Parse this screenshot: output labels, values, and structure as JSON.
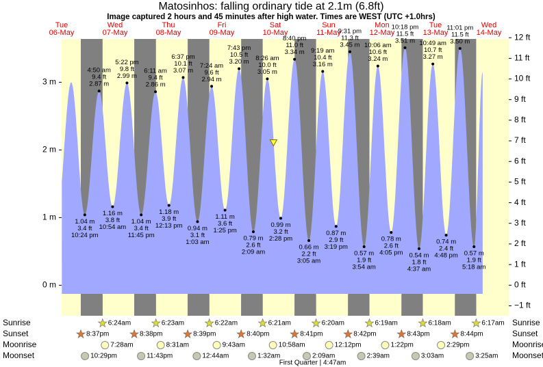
{
  "chart_data": {
    "type": "tide",
    "title": "Matosinhos: falling  ordinary tide at 2.1m (6.8ft)",
    "subtitle": "Image captured 2 hours and 45 minutes after high water. Times are WEST (UTC +1.0hrs)",
    "ylim": [
      -0.38,
      3.64
    ],
    "yticks": [
      {
        "value": 0,
        "label": "0 m"
      },
      {
        "value": 1,
        "label": "1 m"
      },
      {
        "value": 2,
        "label": "2 m"
      },
      {
        "value": 3,
        "label": "3 m"
      }
    ],
    "y2lim": [
      -1.25,
      11.94
    ],
    "y2ticks": [
      {
        "value": -1,
        "label": "−1 ft"
      },
      {
        "value": 0,
        "label": "0 ft"
      },
      {
        "value": 1,
        "label": "1 ft"
      },
      {
        "value": 2,
        "label": "2 ft"
      },
      {
        "value": 3,
        "label": "3 ft"
      },
      {
        "value": 4,
        "label": "4 ft"
      },
      {
        "value": 5,
        "label": "5 ft"
      },
      {
        "value": 6,
        "label": "6 ft"
      },
      {
        "value": 7,
        "label": "7 ft"
      },
      {
        "value": 8,
        "label": "8 ft"
      },
      {
        "value": 9,
        "label": "9 ft"
      },
      {
        "value": 10,
        "label": "10 ft"
      },
      {
        "value": 11,
        "label": "11 ft"
      },
      {
        "value": 12,
        "label": "12 ft"
      }
    ],
    "colors": {
      "day": "#ffffcc",
      "night": "#808080",
      "water": "#a0a8ff"
    },
    "rows": {
      "sunrise": "Sunrise",
      "sunset": "Sunset",
      "moonrise": "Moonrise",
      "moonset": "Moonset"
    },
    "days": [
      {
        "weekday": "Tue",
        "date": "06-May",
        "sunset": "8:37pm",
        "moonset": "10:29pm",
        "tides": [
          {
            "hour": 10.0,
            "height": 1.05
          },
          {
            "hour": 16.3,
            "height": 3.0
          },
          {
            "time": "10:24 pm",
            "height": 1.04,
            "height_label": "1.04 m",
            "feet": 3.4,
            "feet_label": "3.4 ft"
          }
        ]
      },
      {
        "weekday": "Wed",
        "date": "07-May",
        "sunrise": "6:24am",
        "sunset": "8:38pm",
        "moonrise": "7:28am",
        "moonset": "11:43pm",
        "tides": [
          {
            "time": "4:50 am",
            "height": 2.87,
            "height_label": "2.87 m",
            "feet": 9.4,
            "feet_label": "9.4 ft"
          },
          {
            "time": "10:54 am",
            "height": 1.16,
            "height_label": "1.16 m",
            "feet": 3.8,
            "feet_label": "3.8 ft"
          },
          {
            "time": "5:22 pm",
            "height": 2.99,
            "height_label": "2.99 m",
            "feet": 9.8,
            "feet_label": "9.8 ft"
          },
          {
            "time": "11:45 pm",
            "height": 1.04,
            "height_label": "1.04 m",
            "feet": 3.4,
            "feet_label": "3.4 ft"
          }
        ]
      },
      {
        "weekday": "Thu",
        "date": "08-May",
        "sunrise": "6:23am",
        "sunset": "8:39pm",
        "moonrise": "8:31am",
        "tides": [
          {
            "time": "6:11 am",
            "height": 2.86,
            "height_label": "2.86 m",
            "feet": 9.4,
            "feet_label": "9.4 ft"
          },
          {
            "time": "12:13 pm",
            "height": 1.18,
            "height_label": "1.18 m",
            "feet": 3.9,
            "feet_label": "3.9 ft"
          },
          {
            "time": "6:37 pm",
            "height": 3.07,
            "height_label": "3.07 m",
            "feet": 10.1,
            "feet_label": "10.1 ft"
          }
        ]
      },
      {
        "weekday": "Fri",
        "date": "09-May",
        "sunrise": "6:22am",
        "sunset": "8:40pm",
        "moonrise": "9:43am",
        "moonset": "12:44am",
        "tides": [
          {
            "time": "1:03 am",
            "height": 0.94,
            "height_label": "0.94 m",
            "feet": 3.1,
            "feet_label": "3.1 ft"
          },
          {
            "time": "7:24 am",
            "height": 2.94,
            "height_label": "2.94 m",
            "feet": 9.6,
            "feet_label": "9.6 ft"
          },
          {
            "time": "1:25 pm",
            "height": 1.11,
            "height_label": "1.11 m",
            "feet": 3.6,
            "feet_label": "3.6 ft"
          },
          {
            "time": "7:43 pm",
            "height": 3.2,
            "height_label": "3.20 m",
            "feet": 10.5,
            "feet_label": "10.5 ft"
          }
        ]
      },
      {
        "weekday": "Sat",
        "date": "10-May",
        "sunrise": "6:21am",
        "sunset": "8:41pm",
        "moonrise": "10:58am",
        "moonset": "1:32am",
        "now": {
          "hour": 11.2,
          "height": 2.1
        },
        "tides": [
          {
            "time": "2:09 am",
            "height": 0.79,
            "height_label": "0.79 m",
            "feet": 2.6,
            "feet_label": "2.6 ft"
          },
          {
            "time": "8:26 am",
            "height": 3.05,
            "height_label": "3.05 m",
            "feet": 10.0,
            "feet_label": "10.0 ft"
          },
          {
            "time": "2:28 pm",
            "height": 0.99,
            "height_label": "0.99 m",
            "feet": 3.2,
            "feet_label": "3.2 ft"
          },
          {
            "time": "8:40 pm",
            "height": 3.34,
            "height_label": "3.34 m",
            "feet": 11.0,
            "feet_label": "11.0 ft"
          }
        ]
      },
      {
        "weekday": "Sun",
        "date": "11-May",
        "sunrise": "6:20am",
        "sunset": "8:42pm",
        "moonrise": "12:12pm",
        "moonset": "2:09am",
        "moon_phase": "First Quarter | 4:47am",
        "tides": [
          {
            "time": "3:05 am",
            "height": 0.66,
            "height_label": "0.66 m",
            "feet": 2.2,
            "feet_label": "2.2 ft"
          },
          {
            "time": "9:19 am",
            "height": 3.16,
            "height_label": "3.16 m",
            "feet": 10.4,
            "feet_label": "10.4 ft"
          },
          {
            "time": "3:19 pm",
            "height": 0.87,
            "height_label": "0.87 m",
            "feet": 2.9,
            "feet_label": "2.9 ft"
          },
          {
            "time": "9:31 pm",
            "height": 3.45,
            "height_label": "3.45 m",
            "feet": 11.3,
            "feet_label": "11.3 ft"
          }
        ]
      },
      {
        "weekday": "Mon",
        "date": "12-May",
        "sunrise": "6:19am",
        "sunset": "8:43pm",
        "moonrise": "1:22pm",
        "moonset": "2:39am",
        "tides": [
          {
            "time": "3:54 am",
            "height": 0.57,
            "height_label": "0.57 m",
            "feet": 1.9,
            "feet_label": "1.9 ft"
          },
          {
            "time": "10:06 am",
            "height": 3.24,
            "height_label": "3.24 m",
            "feet": 10.6,
            "feet_label": "10.6 ft"
          },
          {
            "time": "4:05 pm",
            "height": 0.78,
            "height_label": "0.78 m",
            "feet": 2.6,
            "feet_label": "2.6 ft"
          },
          {
            "time": "10:18 pm",
            "height": 3.51,
            "height_label": "3.51 m",
            "feet": 11.5,
            "feet_label": "11.5 ft"
          }
        ]
      },
      {
        "weekday": "Tue",
        "date": "13-May",
        "sunrise": "6:18am",
        "sunset": "8:44pm",
        "moonrise": "2:29pm",
        "moonset": "3:03am",
        "tides": [
          {
            "time": "4:37 am",
            "height": 0.54,
            "height_label": "0.54 m",
            "feet": 1.8,
            "feet_label": "1.8 ft"
          },
          {
            "time": "10:49 am",
            "height": 3.27,
            "height_label": "3.27 m",
            "feet": 10.7,
            "feet_label": "10.7 ft"
          },
          {
            "time": "4:48 pm",
            "height": 0.74,
            "height_label": "0.74 m",
            "feet": 2.4,
            "feet_label": "2.4 ft"
          },
          {
            "time": "11:01 pm",
            "height": 3.5,
            "height_label": "3.50 m",
            "feet": 11.5,
            "feet_label": "11.5 ft"
          }
        ]
      },
      {
        "weekday": "Wed",
        "date": "14-May",
        "sunrise": "6:17am",
        "moonset": "3:25am",
        "tides": [
          {
            "time": "5:18 am",
            "height": 0.57,
            "height_label": "0.57 m",
            "feet": 1.9,
            "feet_label": "1.9 ft"
          },
          {
            "hour": 9.2,
            "height": 3.15
          }
        ]
      }
    ]
  }
}
